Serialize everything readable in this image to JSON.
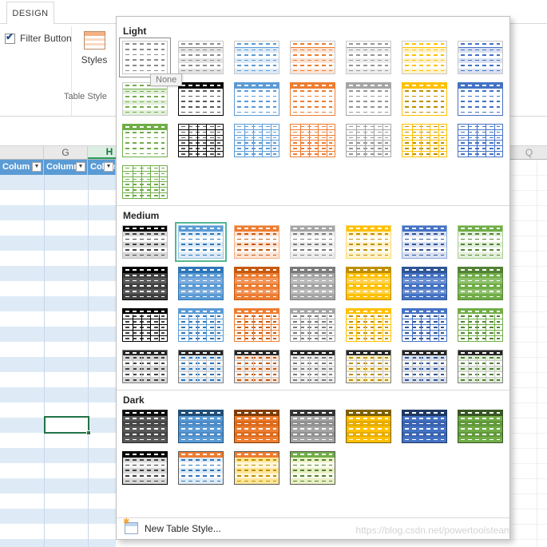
{
  "ribbon": {
    "tab_label": "DESIGN",
    "filter_button_label": "Filter Button",
    "filter_button_checked": true,
    "styles_button_label": "Styles",
    "group_label": "Table Style"
  },
  "icons": {
    "checkbox_check": "✔",
    "filter_arrow": "▼",
    "new_style_sparkle": "✱"
  },
  "worksheet": {
    "column_letters": [
      "G",
      "H"
    ],
    "far_right_column_letter": "Q",
    "selected_column": "H",
    "table_headers": [
      "Colum",
      "Column",
      "Colum"
    ],
    "banding": {
      "stripe": "#DEEBF7",
      "plain": "#FFFFFF"
    },
    "table_header_fill": "#5B9BD5",
    "selection_border_color": "#217346",
    "selected_header_fill": "#DCEEE2",
    "selected_header_text": "#0F7B40"
  },
  "gallery": {
    "tooltip": "None",
    "new_style_label": "New Table Style...",
    "selected_highlight_color": "#53B893",
    "sections": [
      {
        "label": "Light",
        "swatches": [
          {
            "name": "none",
            "frame": "#C9C9C9",
            "bandA": "#FFFFFF",
            "bandB": "#FFFFFF",
            "dash": "#8C8C8C",
            "outlined": true
          },
          {
            "name": "light-1",
            "frame": "#C9C9C9",
            "bandA": "#E4E4E4",
            "bandB": "#FFFFFF",
            "dash": "#8C8C8C",
            "headerBorder": "#8C8C8C"
          },
          {
            "name": "light-2",
            "frame": "#C9C9C9",
            "bandA": "#DEEBF7",
            "bandB": "#FFFFFF",
            "dash": "#5B9BD5",
            "headerBorder": "#5B9BD5"
          },
          {
            "name": "light-3",
            "frame": "#C9C9C9",
            "bandA": "#FCE4D6",
            "bandB": "#FFFFFF",
            "dash": "#ED7D31",
            "headerBorder": "#ED7D31"
          },
          {
            "name": "light-4",
            "frame": "#C9C9C9",
            "bandA": "#EDEDED",
            "bandB": "#FFFFFF",
            "dash": "#969696",
            "headerBorder": "#969696"
          },
          {
            "name": "light-5",
            "frame": "#C9C9C9",
            "bandA": "#FFF2CC",
            "bandB": "#FFFFFF",
            "dash": "#FFC000",
            "headerBorder": "#FFC000"
          },
          {
            "name": "light-6",
            "frame": "#C9C9C9",
            "bandA": "#D9E1F2",
            "bandB": "#FFFFFF",
            "dash": "#4472C4",
            "headerBorder": "#4472C4"
          },
          {
            "name": "light-7",
            "frame": "#C9C9C9",
            "bandA": "#E2EFDA",
            "bandB": "#FFFFFF",
            "dash": "#70AD47",
            "headerBorder": "#70AD47"
          },
          {
            "name": "light-8",
            "frame": "#000000",
            "header": "#000000",
            "headerDash": "#FFFFFF",
            "bandA": "#FFFFFF",
            "bandB": "#FFFFFF",
            "dash": "#595959"
          },
          {
            "name": "light-9",
            "frame": "#5B9BD5",
            "header": "#5B9BD5",
            "headerDash": "#FFFFFF",
            "bandA": "#FFFFFF",
            "bandB": "#FFFFFF",
            "dash": "#5B9BD5"
          },
          {
            "name": "light-10",
            "frame": "#ED7D31",
            "header": "#ED7D31",
            "headerDash": "#FFFFFF",
            "bandA": "#FFFFFF",
            "bandB": "#FFFFFF",
            "dash": "#ED7D31"
          },
          {
            "name": "light-11",
            "frame": "#A5A5A5",
            "header": "#A5A5A5",
            "headerDash": "#FFFFFF",
            "bandA": "#FFFFFF",
            "bandB": "#FFFFFF",
            "dash": "#969696"
          },
          {
            "name": "light-12",
            "frame": "#FFC000",
            "header": "#FFC000",
            "headerDash": "#FFFFFF",
            "bandA": "#FFFFFF",
            "bandB": "#FFFFFF",
            "dash": "#BF8F00"
          },
          {
            "name": "light-13",
            "frame": "#4472C4",
            "header": "#4472C4",
            "headerDash": "#FFFFFF",
            "bandA": "#FFFFFF",
            "bandB": "#FFFFFF",
            "dash": "#4472C4"
          },
          {
            "name": "light-14",
            "frame": "#70AD47",
            "header": "#70AD47",
            "headerDash": "#FFFFFF",
            "bandA": "#FFFFFF",
            "bandB": "#FFFFFF",
            "dash": "#70AD47"
          },
          {
            "name": "light-15",
            "frame": "#000000",
            "grid": "#000000",
            "bandA": "#FFFFFF",
            "bandB": "#FFFFFF",
            "dash": "#595959"
          },
          {
            "name": "light-16",
            "frame": "#5B9BD5",
            "grid": "#5B9BD5",
            "bandA": "#FFFFFF",
            "bandB": "#FFFFFF",
            "dash": "#5B9BD5"
          },
          {
            "name": "light-17",
            "frame": "#ED7D31",
            "grid": "#ED7D31",
            "bandA": "#FFFFFF",
            "bandB": "#FFFFFF",
            "dash": "#ED7D31"
          },
          {
            "name": "light-18",
            "frame": "#A5A5A5",
            "grid": "#A5A5A5",
            "bandA": "#FFFFFF",
            "bandB": "#FFFFFF",
            "dash": "#969696"
          },
          {
            "name": "light-19",
            "frame": "#FFC000",
            "grid": "#FFC000",
            "bandA": "#FFFFFF",
            "bandB": "#FFFFFF",
            "dash": "#BF8F00"
          },
          {
            "name": "light-20",
            "frame": "#4472C4",
            "grid": "#4472C4",
            "bandA": "#FFFFFF",
            "bandB": "#FFFFFF",
            "dash": "#4472C4"
          },
          {
            "name": "light-21",
            "frame": "#70AD47",
            "grid": "#70AD47",
            "bandA": "#FFFFFF",
            "bandB": "#FFFFFF",
            "dash": "#70AD47"
          }
        ]
      },
      {
        "label": "Medium",
        "swatches": [
          {
            "name": "medium-1",
            "frame": "#BFBFBF",
            "header": "#000000",
            "headerDash": "#FFFFFF",
            "bandA": "#D9D9D9",
            "bandB": "#FFFFFF",
            "dash": "#404040"
          },
          {
            "name": "medium-2",
            "frame": "#9CC3E5",
            "header": "#5B9BD5",
            "headerDash": "#FFFFFF",
            "bandA": "#DEEBF7",
            "bandB": "#FFFFFF",
            "dash": "#2E75B6",
            "selected": true
          },
          {
            "name": "medium-3",
            "frame": "#F4B183",
            "header": "#ED7D31",
            "headerDash": "#FFFFFF",
            "bandA": "#FCE4D6",
            "bandB": "#FFFFFF",
            "dash": "#C55A11"
          },
          {
            "name": "medium-4",
            "frame": "#CFCFCF",
            "header": "#A5A5A5",
            "headerDash": "#FFFFFF",
            "bandA": "#EDEDED",
            "bandB": "#FFFFFF",
            "dash": "#7B7B7B"
          },
          {
            "name": "medium-5",
            "frame": "#FFD966",
            "header": "#FFC000",
            "headerDash": "#FFFFFF",
            "bandA": "#FFF2CC",
            "bandB": "#FFFFFF",
            "dash": "#BF8F00"
          },
          {
            "name": "medium-6",
            "frame": "#8EAADB",
            "header": "#4472C4",
            "headerDash": "#FFFFFF",
            "bandA": "#D9E1F2",
            "bandB": "#FFFFFF",
            "dash": "#2F5597"
          },
          {
            "name": "medium-7",
            "frame": "#A9D18E",
            "header": "#70AD47",
            "headerDash": "#FFFFFF",
            "bandA": "#E2EFDA",
            "bandB": "#FFFFFF",
            "dash": "#548235"
          },
          {
            "name": "medium-8",
            "frame": "#000000",
            "header": "#000000",
            "headerDash": "#FFFFFF",
            "bandA": "#404040",
            "bandB": "#595959",
            "dash": "#FFFFFF"
          },
          {
            "name": "medium-9",
            "frame": "#2E75B6",
            "header": "#2E75B6",
            "headerDash": "#FFFFFF",
            "bandA": "#5B9BD5",
            "bandB": "#7CACDD",
            "dash": "#FFFFFF"
          },
          {
            "name": "medium-10",
            "frame": "#C55A11",
            "header": "#C55A11",
            "headerDash": "#FFFFFF",
            "bandA": "#ED7D31",
            "bandB": "#F0955A",
            "dash": "#FFFFFF"
          },
          {
            "name": "medium-11",
            "frame": "#7B7B7B",
            "header": "#7B7B7B",
            "headerDash": "#FFFFFF",
            "bandA": "#A5A5A5",
            "bandB": "#BABABA",
            "dash": "#FFFFFF"
          },
          {
            "name": "medium-12",
            "frame": "#BF8F00",
            "header": "#BF8F00",
            "headerDash": "#FFFFFF",
            "bandA": "#FFC000",
            "bandB": "#FFD24D",
            "dash": "#FFFFFF"
          },
          {
            "name": "medium-13",
            "frame": "#2F5597",
            "header": "#2F5597",
            "headerDash": "#FFFFFF",
            "bandA": "#4472C4",
            "bandB": "#6C8FD2",
            "dash": "#FFFFFF"
          },
          {
            "name": "medium-14",
            "frame": "#548235",
            "header": "#548235",
            "headerDash": "#FFFFFF",
            "bandA": "#70AD47",
            "bandB": "#8EC06C",
            "dash": "#FFFFFF"
          },
          {
            "name": "medium-15",
            "frame": "#000000",
            "header": "#000000",
            "headerDash": "#FFFFFF",
            "bandA": "#FFFFFF",
            "bandB": "#FFFFFF",
            "dash": "#404040",
            "grid": "#000000"
          },
          {
            "name": "medium-16",
            "frame": "#5B9BD5",
            "header": "#5B9BD5",
            "headerDash": "#FFFFFF",
            "bandA": "#FFFFFF",
            "bandB": "#FFFFFF",
            "dash": "#2E75B6",
            "grid": "#5B9BD5"
          },
          {
            "name": "medium-17",
            "frame": "#ED7D31",
            "header": "#ED7D31",
            "headerDash": "#FFFFFF",
            "bandA": "#FFFFFF",
            "bandB": "#FFFFFF",
            "dash": "#C55A11",
            "grid": "#ED7D31"
          },
          {
            "name": "medium-18",
            "frame": "#A5A5A5",
            "header": "#A5A5A5",
            "headerDash": "#FFFFFF",
            "bandA": "#FFFFFF",
            "bandB": "#FFFFFF",
            "dash": "#7B7B7B",
            "grid": "#A5A5A5"
          },
          {
            "name": "medium-19",
            "frame": "#FFC000",
            "header": "#FFC000",
            "headerDash": "#FFFFFF",
            "bandA": "#FFFFFF",
            "bandB": "#FFFFFF",
            "dash": "#BF8F00",
            "grid": "#FFC000"
          },
          {
            "name": "medium-20",
            "frame": "#4472C4",
            "header": "#4472C4",
            "headerDash": "#FFFFFF",
            "bandA": "#FFFFFF",
            "bandB": "#FFFFFF",
            "dash": "#2F5597",
            "grid": "#4472C4"
          },
          {
            "name": "medium-21",
            "frame": "#70AD47",
            "header": "#70AD47",
            "headerDash": "#FFFFFF",
            "bandA": "#FFFFFF",
            "bandB": "#FFFFFF",
            "dash": "#548235",
            "grid": "#70AD47"
          },
          {
            "name": "medium-22",
            "frame": "#7F7F7F",
            "header": "#262626",
            "headerDash": "#FFFFFF",
            "bandA": "#D9D9D9",
            "bandB": "#FFFFFF",
            "dash": "#404040",
            "grid": "#C9C9C9"
          },
          {
            "name": "medium-23",
            "frame": "#7F7F7F",
            "header": "#262626",
            "headerDash": "#FFFFFF",
            "bandA": "#DEEBF7",
            "bandB": "#FFFFFF",
            "dash": "#2E75B6",
            "grid": "#C9C9C9"
          },
          {
            "name": "medium-24",
            "frame": "#7F7F7F",
            "header": "#262626",
            "headerDash": "#FFFFFF",
            "bandA": "#FCE4D6",
            "bandB": "#FFFFFF",
            "dash": "#C55A11",
            "grid": "#C9C9C9"
          },
          {
            "name": "medium-25",
            "frame": "#7F7F7F",
            "header": "#262626",
            "headerDash": "#FFFFFF",
            "bandA": "#EDEDED",
            "bandB": "#FFFFFF",
            "dash": "#7B7B7B",
            "grid": "#C9C9C9"
          },
          {
            "name": "medium-26",
            "frame": "#7F7F7F",
            "header": "#262626",
            "headerDash": "#FFFFFF",
            "bandA": "#FFF2CC",
            "bandB": "#FFFFFF",
            "dash": "#BF8F00",
            "grid": "#C9C9C9"
          },
          {
            "name": "medium-27",
            "frame": "#7F7F7F",
            "header": "#262626",
            "headerDash": "#FFFFFF",
            "bandA": "#D9E1F2",
            "bandB": "#FFFFFF",
            "dash": "#2F5597",
            "grid": "#C9C9C9"
          },
          {
            "name": "medium-28",
            "frame": "#7F7F7F",
            "header": "#262626",
            "headerDash": "#FFFFFF",
            "bandA": "#E2EFDA",
            "bandB": "#FFFFFF",
            "dash": "#548235",
            "grid": "#C9C9C9"
          }
        ]
      },
      {
        "label": "Dark",
        "swatches": [
          {
            "name": "dark-1",
            "frame": "#262626",
            "header": "#0D0D0D",
            "headerDash": "#FFFFFF",
            "bandA": "#595959",
            "bandB": "#484848",
            "dash": "#FFFFFF"
          },
          {
            "name": "dark-2",
            "frame": "#1F4E79",
            "header": "#1F4E79",
            "headerDash": "#FFFFFF",
            "bandA": "#5B9BD5",
            "bandB": "#4C8BC6",
            "dash": "#FFFFFF"
          },
          {
            "name": "dark-3",
            "frame": "#833C00",
            "header": "#833C00",
            "headerDash": "#FFFFFF",
            "bandA": "#ED7D31",
            "bandB": "#DD6B1D",
            "dash": "#FFFFFF"
          },
          {
            "name": "dark-4",
            "frame": "#404040",
            "header": "#333333",
            "headerDash": "#FFFFFF",
            "bandA": "#A5A5A5",
            "bandB": "#919191",
            "dash": "#FFFFFF"
          },
          {
            "name": "dark-5",
            "frame": "#7F6000",
            "header": "#7F6000",
            "headerDash": "#FFFFFF",
            "bandA": "#FFC000",
            "bandB": "#E6AD00",
            "dash": "#FFFFFF"
          },
          {
            "name": "dark-6",
            "frame": "#1F3864",
            "header": "#1F3864",
            "headerDash": "#FFFFFF",
            "bandA": "#4472C4",
            "bandB": "#3A64B0",
            "dash": "#FFFFFF"
          },
          {
            "name": "dark-7",
            "frame": "#375623",
            "header": "#375623",
            "headerDash": "#FFFFFF",
            "bandA": "#70AD47",
            "bandB": "#61983B",
            "dash": "#FFFFFF"
          },
          {
            "name": "dark-8",
            "frame": "#000000",
            "header": "#000000",
            "headerDash": "#FFFFFF",
            "bandA": "#D9D9D9",
            "bandB": "#F5F5F5",
            "dash": "#404040"
          },
          {
            "name": "dark-9",
            "frame": "#595959",
            "header": "#ED7D31",
            "headerDash": "#FFFFFF",
            "bandA": "#DEEBF7",
            "bandB": "#FFFFFF",
            "dash": "#2E75B6"
          },
          {
            "name": "dark-10",
            "frame": "#595959",
            "header": "#ED7D31",
            "headerDash": "#FFFFFF",
            "bandA": "#FFE699",
            "bandB": "#FFF7DB",
            "dash": "#BF8F00"
          },
          {
            "name": "dark-11",
            "frame": "#595959",
            "header": "#70AD47",
            "headerDash": "#FFFFFF",
            "bandA": "#E9F0C4",
            "bandB": "#F9FCEE",
            "dash": "#548235"
          }
        ]
      }
    ]
  },
  "watermark": "https://blog.csdn.net/powertoolsteam"
}
